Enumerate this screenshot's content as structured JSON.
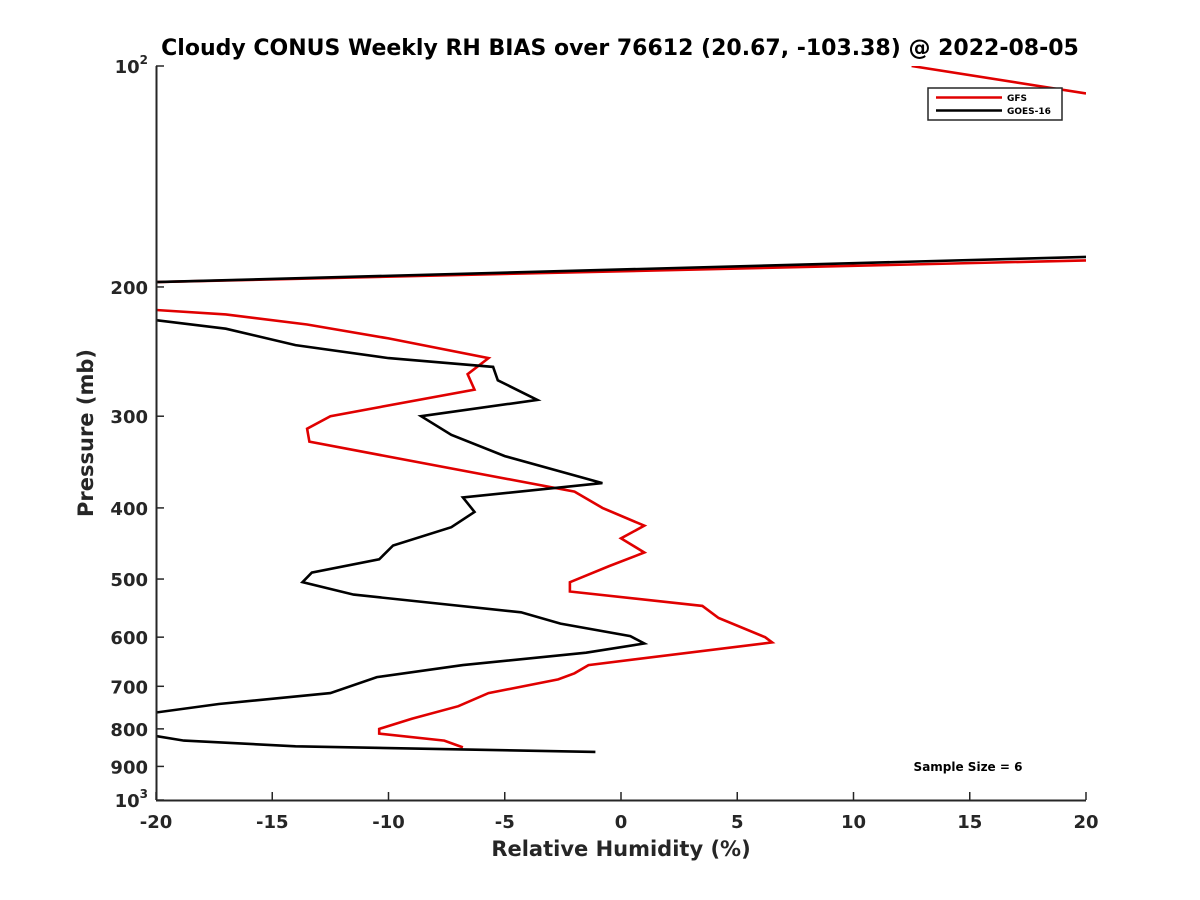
{
  "chart_data": {
    "type": "line",
    "title": "Cloudy CONUS Weekly RH BIAS over 76612 (20.67, -103.38) @ 2022-08-05",
    "xlabel": "Relative Humidity (%)",
    "ylabel": "Pressure (mb)",
    "xlim": [
      -20,
      20
    ],
    "ylim": [
      100,
      1000
    ],
    "yscale": "log",
    "y_reversed": true,
    "grid": false,
    "legend_position": "top-right",
    "xticks": [
      -20,
      -15,
      -10,
      -5,
      0,
      5,
      10,
      15,
      20
    ],
    "xtick_labels": [
      "-20",
      "-15",
      "-10",
      "-5",
      "0",
      "5",
      "10",
      "15",
      "20"
    ],
    "yticks": [
      {
        "value": 100,
        "base": "10",
        "exp": "2"
      },
      {
        "value": 200,
        "label": "200"
      },
      {
        "value": 300,
        "label": "300"
      },
      {
        "value": 400,
        "label": "400"
      },
      {
        "value": 500,
        "label": "500"
      },
      {
        "value": 600,
        "label": "600"
      },
      {
        "value": 700,
        "label": "700"
      },
      {
        "value": 800,
        "label": "800"
      },
      {
        "value": 900,
        "label": "900"
      },
      {
        "value": 1000,
        "base": "10",
        "exp": "3"
      }
    ],
    "series": [
      {
        "name": "GFS",
        "color": "#e00000",
        "segments": [
          [
            [
              12.5,
              100
            ],
            [
              20,
              109
            ]
          ],
          [
            [
              -20,
              197
            ],
            [
              20,
              184
            ]
          ],
          [
            [
              -20,
              215
            ],
            [
              -17,
              218
            ],
            [
              -13.5,
              225
            ],
            [
              -10,
              235
            ],
            [
              -5.7,
              250
            ],
            [
              -6.6,
              263
            ],
            [
              -6.3,
              276
            ],
            [
              -12.5,
              300
            ],
            [
              -13.5,
              312
            ],
            [
              -13.4,
              325
            ],
            [
              -2,
              380
            ],
            [
              -0.8,
              400
            ],
            [
              1,
              423
            ],
            [
              0,
              440
            ],
            [
              1,
              460
            ],
            [
              -0.5,
              480
            ],
            [
              -2.2,
              505
            ],
            [
              -2.2,
              520
            ],
            [
              3.5,
              544
            ],
            [
              4.2,
              565
            ],
            [
              6.2,
              600
            ],
            [
              6.5,
              610
            ],
            [
              -1.4,
              655
            ],
            [
              -2,
              672
            ],
            [
              -2.7,
              685
            ],
            [
              -5.7,
              715
            ],
            [
              -7,
              745
            ],
            [
              -9,
              775
            ],
            [
              -10.4,
              800
            ],
            [
              -10.4,
              812
            ],
            [
              -7.6,
              830
            ],
            [
              -6.8,
              848
            ]
          ]
        ]
      },
      {
        "name": "GOES-16",
        "color": "#000000",
        "segments": [
          [
            [
              -20,
              197
            ],
            [
              20,
              182
            ]
          ],
          [
            [
              -20,
              222
            ],
            [
              -17,
              228
            ],
            [
              -14,
              240
            ],
            [
              -10,
              250
            ],
            [
              -5.5,
              257
            ],
            [
              -5.3,
              268
            ],
            [
              -3.6,
              285
            ],
            [
              -8.6,
              300
            ],
            [
              -7.3,
              318
            ],
            [
              -5,
              340
            ],
            [
              -0.8,
              370
            ],
            [
              -6.8,
              387
            ],
            [
              -6.3,
              405
            ],
            [
              -7.3,
              425
            ],
            [
              -9.8,
              450
            ],
            [
              -10.4,
              470
            ],
            [
              -13.3,
              490
            ],
            [
              -13.7,
              505
            ],
            [
              -11.5,
              525
            ],
            [
              -4.3,
              555
            ],
            [
              -2.6,
              575
            ],
            [
              0.4,
              598
            ],
            [
              1,
              612
            ],
            [
              -1.5,
              630
            ],
            [
              -6.8,
              655
            ],
            [
              -10.5,
              680
            ],
            [
              -12.5,
              715
            ],
            [
              -17.3,
              740
            ],
            [
              -20,
              760
            ]
          ],
          [
            [
              -20,
              818
            ],
            [
              -18.8,
              830
            ],
            [
              -14,
              845
            ],
            [
              -1.1,
              860
            ]
          ]
        ]
      }
    ],
    "annotations": [
      {
        "text": "Sample Size = 6"
      }
    ]
  }
}
